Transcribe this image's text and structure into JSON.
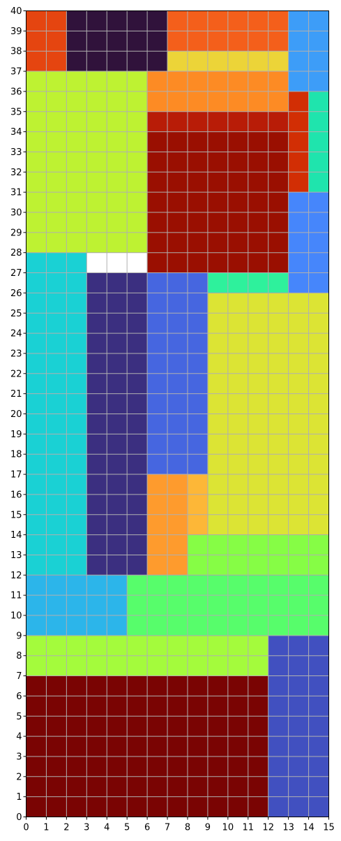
{
  "chart_data": {
    "type": "heatmap",
    "title": "",
    "xlabel": "",
    "ylabel": "",
    "xlim": [
      0,
      15
    ],
    "ylim": [
      0,
      40
    ],
    "x_ticks": [
      0,
      1,
      2,
      3,
      4,
      5,
      6,
      7,
      8,
      9,
      10,
      11,
      12,
      13,
      14,
      15
    ],
    "y_ticks": [
      0,
      1,
      2,
      3,
      4,
      5,
      6,
      7,
      8,
      9,
      10,
      11,
      12,
      13,
      14,
      15,
      16,
      17,
      18,
      19,
      20,
      21,
      22,
      23,
      24,
      25,
      26,
      27,
      28,
      29,
      30,
      31,
      32,
      33,
      34,
      35,
      36,
      37,
      38,
      39,
      40
    ],
    "grid": true,
    "rectangles": [
      {
        "x0": 0,
        "y0": 0,
        "x1": 12,
        "y1": 7,
        "color": "#7a0403"
      },
      {
        "x0": 12,
        "y0": 0,
        "x1": 15,
        "y1": 9,
        "color": "#4150c0"
      },
      {
        "x0": 0,
        "y0": 7,
        "x1": 12,
        "y1": 9,
        "color": "#a4fb3c"
      },
      {
        "x0": 0,
        "y0": 9,
        "x1": 5,
        "y1": 12,
        "color": "#2cb5ea"
      },
      {
        "x0": 5,
        "y0": 9,
        "x1": 15,
        "y1": 12,
        "color": "#57fd6b"
      },
      {
        "x0": 0,
        "y0": 12,
        "x1": 3,
        "y1": 28,
        "color": "#1ad1d4"
      },
      {
        "x0": 3,
        "y0": 12,
        "x1": 6,
        "y1": 27,
        "color": "#3b2f80"
      },
      {
        "x0": 6,
        "y0": 12,
        "x1": 8,
        "y1": 17,
        "color": "#fe9b2d"
      },
      {
        "x0": 8,
        "y0": 12,
        "x1": 15,
        "y1": 14,
        "color": "#86fd45"
      },
      {
        "x0": 8,
        "y0": 14,
        "x1": 9,
        "y1": 17,
        "color": "#fdb737"
      },
      {
        "x0": 9,
        "y0": 14,
        "x1": 15,
        "y1": 26,
        "color": "#dce434"
      },
      {
        "x0": 6,
        "y0": 17,
        "x1": 9,
        "y1": 27,
        "color": "#4666e0"
      },
      {
        "x0": 9,
        "y0": 26,
        "x1": 13,
        "y1": 27,
        "color": "#2ef19c"
      },
      {
        "x0": 13,
        "y0": 26,
        "x1": 15,
        "y1": 31,
        "color": "#4686fb"
      },
      {
        "x0": 6,
        "y0": 27,
        "x1": 13,
        "y1": 34,
        "color": "#9a0f01"
      },
      {
        "x0": 0,
        "y0": 28,
        "x1": 6,
        "y1": 37,
        "color": "#bef232"
      },
      {
        "x0": 13,
        "y0": 31,
        "x1": 14,
        "y1": 36,
        "color": "#d22e04"
      },
      {
        "x0": 14,
        "y0": 31,
        "x1": 15,
        "y1": 36,
        "color": "#1fe4ad"
      },
      {
        "x0": 6,
        "y0": 34,
        "x1": 13,
        "y1": 35,
        "color": "#b81c07"
      },
      {
        "x0": 6,
        "y0": 35,
        "x1": 13,
        "y1": 37,
        "color": "#fd8b24"
      },
      {
        "x0": 13,
        "y0": 36,
        "x1": 15,
        "y1": 40,
        "color": "#3d9df8"
      },
      {
        "x0": 0,
        "y0": 37,
        "x1": 2,
        "y1": 40,
        "color": "#e54510"
      },
      {
        "x0": 2,
        "y0": 37,
        "x1": 7,
        "y1": 40,
        "color": "#30123b"
      },
      {
        "x0": 7,
        "y0": 37,
        "x1": 13,
        "y1": 38,
        "color": "#ecd438"
      },
      {
        "x0": 7,
        "y0": 38,
        "x1": 13,
        "y1": 40,
        "color": "#f45f1b"
      }
    ]
  }
}
